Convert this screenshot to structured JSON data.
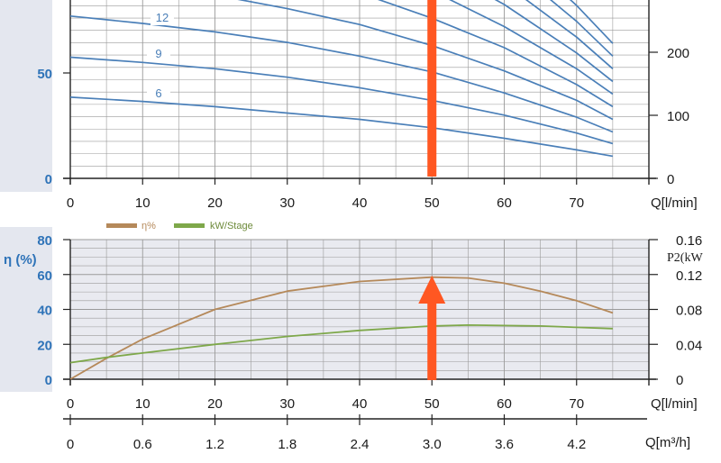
{
  "chart_data": [
    {
      "type": "line",
      "x": [
        0,
        10,
        20,
        30,
        40,
        50,
        60,
        70,
        75
      ],
      "xlabel": "Q[l/min]",
      "xlim": [
        0,
        75
      ],
      "y_left_ticks": [
        0,
        50
      ],
      "y_right_ticks": [
        0,
        100,
        200
      ],
      "grid": true,
      "series": [
        {
          "name": "6",
          "values": [
            38.5,
            36.5,
            34,
            31,
            28,
            24,
            19,
            13.5,
            10.5
          ]
        },
        {
          "name": "9",
          "values": [
            57.5,
            55,
            52,
            48,
            43,
            37,
            30,
            21.5,
            16.5
          ]
        },
        {
          "name": "12",
          "values": [
            77,
            73.5,
            69.5,
            64.5,
            58,
            50.5,
            40.5,
            29,
            22
          ]
        },
        {
          "values": [
            96,
            92,
            87,
            80.5,
            73,
            63,
            51,
            37,
            28
          ]
        },
        {
          "values": [
            115,
            110,
            104,
            97,
            88,
            76,
            62,
            44.5,
            34
          ]
        },
        {
          "values": [
            134,
            128,
            121,
            113,
            102.5,
            89,
            72,
            52,
            40
          ]
        },
        {
          "values": [
            153,
            146.5,
            139,
            129,
            117,
            101.5,
            82.5,
            59.5,
            46
          ]
        },
        {
          "values": [
            172,
            164.5,
            156,
            145,
            131.5,
            114,
            92.5,
            67,
            52
          ]
        },
        {
          "values": [
            191,
            183,
            173,
            161,
            146,
            127,
            103,
            74.5,
            58
          ]
        },
        {
          "values": [
            210,
            201,
            190,
            177,
            160.5,
            139.5,
            113.5,
            82,
            64
          ]
        }
      ],
      "curve_labels": [
        "6",
        "9",
        "12"
      ],
      "annotations": [
        {
          "type": "vertical-arrow",
          "x": 50
        }
      ]
    },
    {
      "type": "line",
      "x": [
        0,
        5,
        10,
        20,
        30,
        40,
        50,
        55,
        60,
        65,
        70,
        75
      ],
      "xlabel": "Q[l/min]",
      "xlim": [
        0,
        75
      ],
      "ylabel": "η (%)",
      "ylim": [
        0,
        80
      ],
      "y_left_ticks": [
        0,
        20,
        40,
        60,
        80
      ],
      "y2label": "P2(kW",
      "y2lim": [
        0,
        0.16
      ],
      "y_right_ticks": [
        "0",
        "0.04",
        "0.08",
        "0.12",
        "0.16"
      ],
      "grid": true,
      "legend": "top-left",
      "series": [
        {
          "name": "η%",
          "color": "#b5895a",
          "values": [
            0,
            12,
            23,
            40,
            50.5,
            56,
            58.5,
            58,
            55,
            50.5,
            45,
            38
          ]
        },
        {
          "name": "kW/Stage",
          "color": "#7ea84a",
          "axis": "right",
          "values": [
            0.019,
            0.025,
            0.03,
            0.04,
            0.049,
            0.056,
            0.061,
            0.062,
            0.0615,
            0.061,
            0.0595,
            0.058
          ]
        }
      ],
      "annotations": [
        {
          "type": "vertical-arrow",
          "x": 50
        }
      ]
    },
    {
      "type": "axis",
      "xlabel": "Q[m³/h]",
      "tick_labels": [
        "0",
        "0.6",
        "1.2",
        "1.8",
        "2.4",
        "3.0",
        "3.6",
        "4.2"
      ]
    }
  ],
  "colors": {
    "axis_gutter": "#e4e7ef",
    "grid": "#9a9a9a",
    "head_curves": "#4a7fb8",
    "arrow": "#ff5722"
  }
}
